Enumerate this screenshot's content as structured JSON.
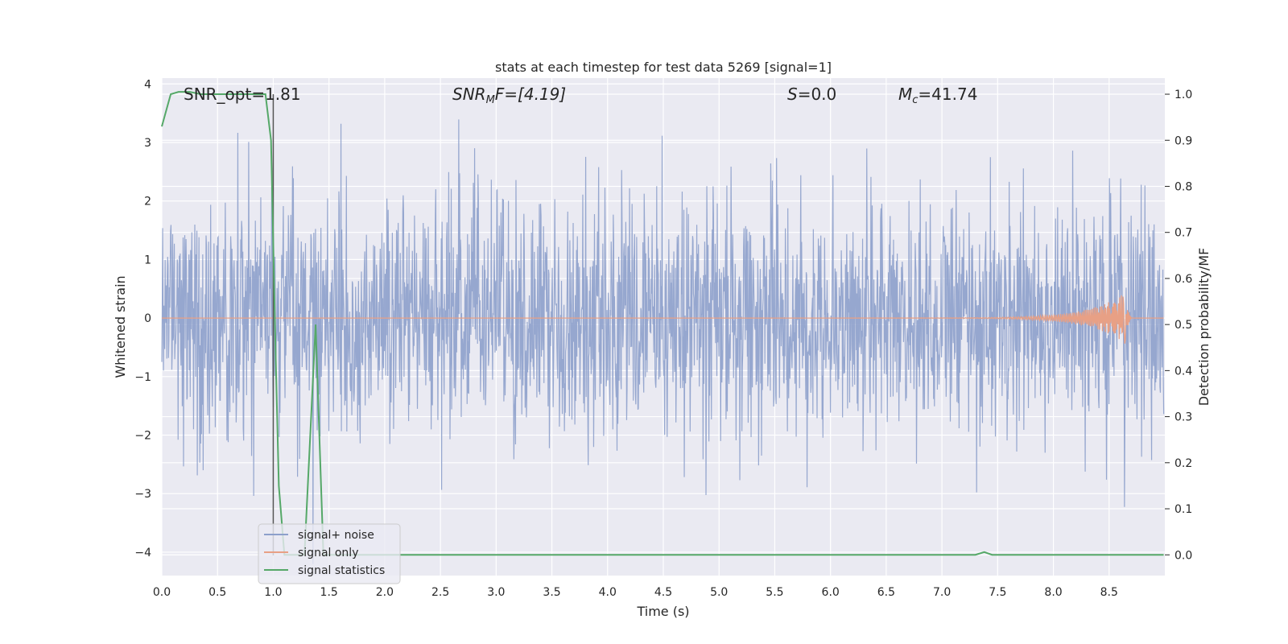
{
  "chart_data": {
    "type": "line",
    "title": "stats at each timestep for test data 5269 [signal=1]",
    "xlabel": "Time (s)",
    "ylabel": "Whitened strain",
    "y2label": "Detection probability/MF",
    "xlim": [
      0.0,
      9.0
    ],
    "ylim": [
      -4.4,
      4.1
    ],
    "y2lim": [
      -0.045,
      1.035
    ],
    "x_ticks": [
      "0.0",
      "0.5",
      "1.0",
      "1.5",
      "2.0",
      "2.5",
      "3.0",
      "3.5",
      "4.0",
      "4.5",
      "5.0",
      "5.5",
      "6.0",
      "6.5",
      "7.0",
      "7.5",
      "8.0",
      "8.5"
    ],
    "y_ticks": [
      "−4",
      "−3",
      "−2",
      "−1",
      "0",
      "1",
      "2",
      "3",
      "4"
    ],
    "y2_ticks": [
      "0.0",
      "0.1",
      "0.2",
      "0.3",
      "0.4",
      "0.5",
      "0.6",
      "0.7",
      "0.8",
      "0.9",
      "1.0"
    ],
    "grid": true,
    "legend_position": "bottom-left",
    "annotations": {
      "snr_opt": "SNR_opt=1.81",
      "snr_mf_base": "SNR",
      "snr_mf_sub": "M",
      "snr_mf_tail": "F=[4.19]",
      "s_var": "S",
      "s_value": "=0.0",
      "mc_var": "M",
      "mc_sub": "c",
      "mc_value": "=41.74"
    },
    "marker_x": 1.0,
    "series": [
      {
        "name": "signal+ noise",
        "color": "#8da0cb",
        "description_kind": "whitened noisy strain, approx. gaussian, sd ~1, range -4 to 4",
        "t_end": 8.99,
        "noise_sd": 1.0
      },
      {
        "name": "signal only",
        "color": "#e8a085",
        "chirp_peak_time": 8.65,
        "chirp_peak_amplitude": 0.45
      },
      {
        "name": "signal statistics",
        "color": "#55a868",
        "points": [
          [
            0.0,
            0.93
          ],
          [
            0.08,
            1.0
          ],
          [
            0.15,
            1.005
          ],
          [
            0.25,
            1.005
          ],
          [
            0.35,
            1.0
          ],
          [
            0.5,
            1.0
          ],
          [
            0.7,
            1.0
          ],
          [
            0.93,
            1.0
          ],
          [
            0.98,
            0.9
          ],
          [
            1.02,
            0.45
          ],
          [
            1.05,
            0.15
          ],
          [
            1.1,
            0.0
          ],
          [
            1.2,
            0.0
          ],
          [
            1.28,
            0.0
          ],
          [
            1.38,
            0.5
          ],
          [
            1.45,
            0.0
          ],
          [
            1.6,
            0.0
          ],
          [
            3.0,
            0.0
          ],
          [
            5.0,
            0.0
          ],
          [
            7.3,
            0.0
          ],
          [
            7.38,
            0.006
          ],
          [
            7.45,
            0.0
          ],
          [
            8.0,
            0.0
          ],
          [
            8.99,
            0.0
          ]
        ]
      }
    ]
  }
}
